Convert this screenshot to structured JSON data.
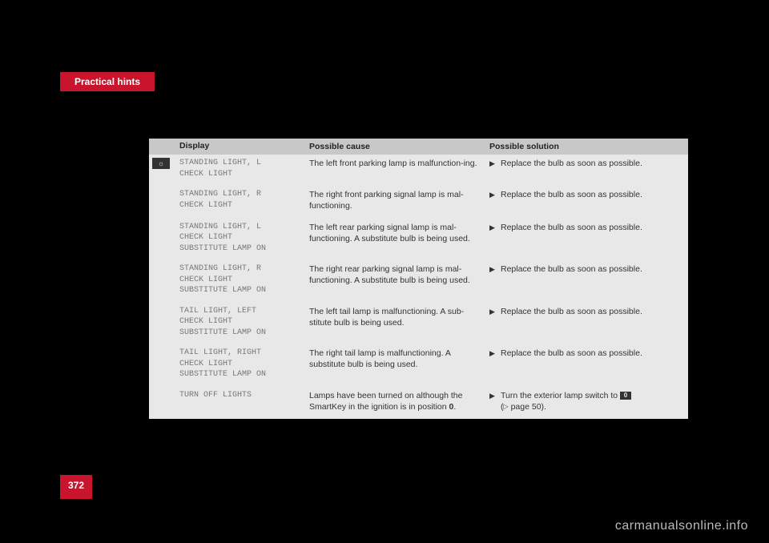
{
  "header": {
    "title": "Practical hints"
  },
  "table": {
    "headers": {
      "display": "Display",
      "cause": "Possible cause",
      "solution": "Possible solution"
    },
    "icon_glyph": "☼",
    "rows": [
      {
        "code": "STANDING LIGHT, L\nCHECK LIGHT",
        "cause": "The left front parking lamp is malfunction-ing.",
        "solution": "Replace the bulb as soon as possible."
      },
      {
        "code": "STANDING LIGHT, R\nCHECK LIGHT",
        "cause": "The right front parking signal lamp is mal-functioning.",
        "solution": "Replace the bulb as soon as possible."
      },
      {
        "code": "STANDING LIGHT, L\nCHECK LIGHT\nSUBSTITUTE LAMP ON",
        "cause": "The left rear parking signal lamp is mal-functioning. A substitute bulb is being used.",
        "solution": "Replace the bulb as soon as possible."
      },
      {
        "code": "STANDING LIGHT, R\nCHECK LIGHT\nSUBSTITUTE LAMP ON",
        "cause": "The right rear parking signal lamp is mal-functioning. A substitute bulb is being used.",
        "solution": "Replace the bulb as soon as possible."
      },
      {
        "code": "TAIL LIGHT, LEFT\nCHECK LIGHT\nSUBSTITUTE LAMP ON",
        "cause": "The left tail lamp is malfunctioning. A sub-stitute bulb is being used.",
        "solution": "Replace the bulb as soon as possible."
      },
      {
        "code": "TAIL LIGHT, RIGHT\nCHECK LIGHT\nSUBSTITUTE LAMP ON",
        "cause": "The right tail lamp is malfunctioning. A substitute bulb is being used.",
        "solution": "Replace the bulb as soon as possible."
      },
      {
        "code": "TURN OFF LIGHTS",
        "cause_prefix": "Lamps have been turned on although the SmartKey in the ignition is in position ",
        "cause_bold": "0",
        "cause_suffix": ".",
        "solution_prefix": "Turn the exterior lamp switch to ",
        "solution_icon": "0",
        "solution_suffix_ref": " page 50).",
        "solution_ref_tri": "▷"
      }
    ]
  },
  "page_number": "372",
  "watermark": "carmanualsonline.info",
  "colors": {
    "background": "#000000",
    "accent": "#c8152d",
    "table_bg": "#e8e8e8",
    "header_bg": "#c8c8c8",
    "code_color": "#777777"
  }
}
